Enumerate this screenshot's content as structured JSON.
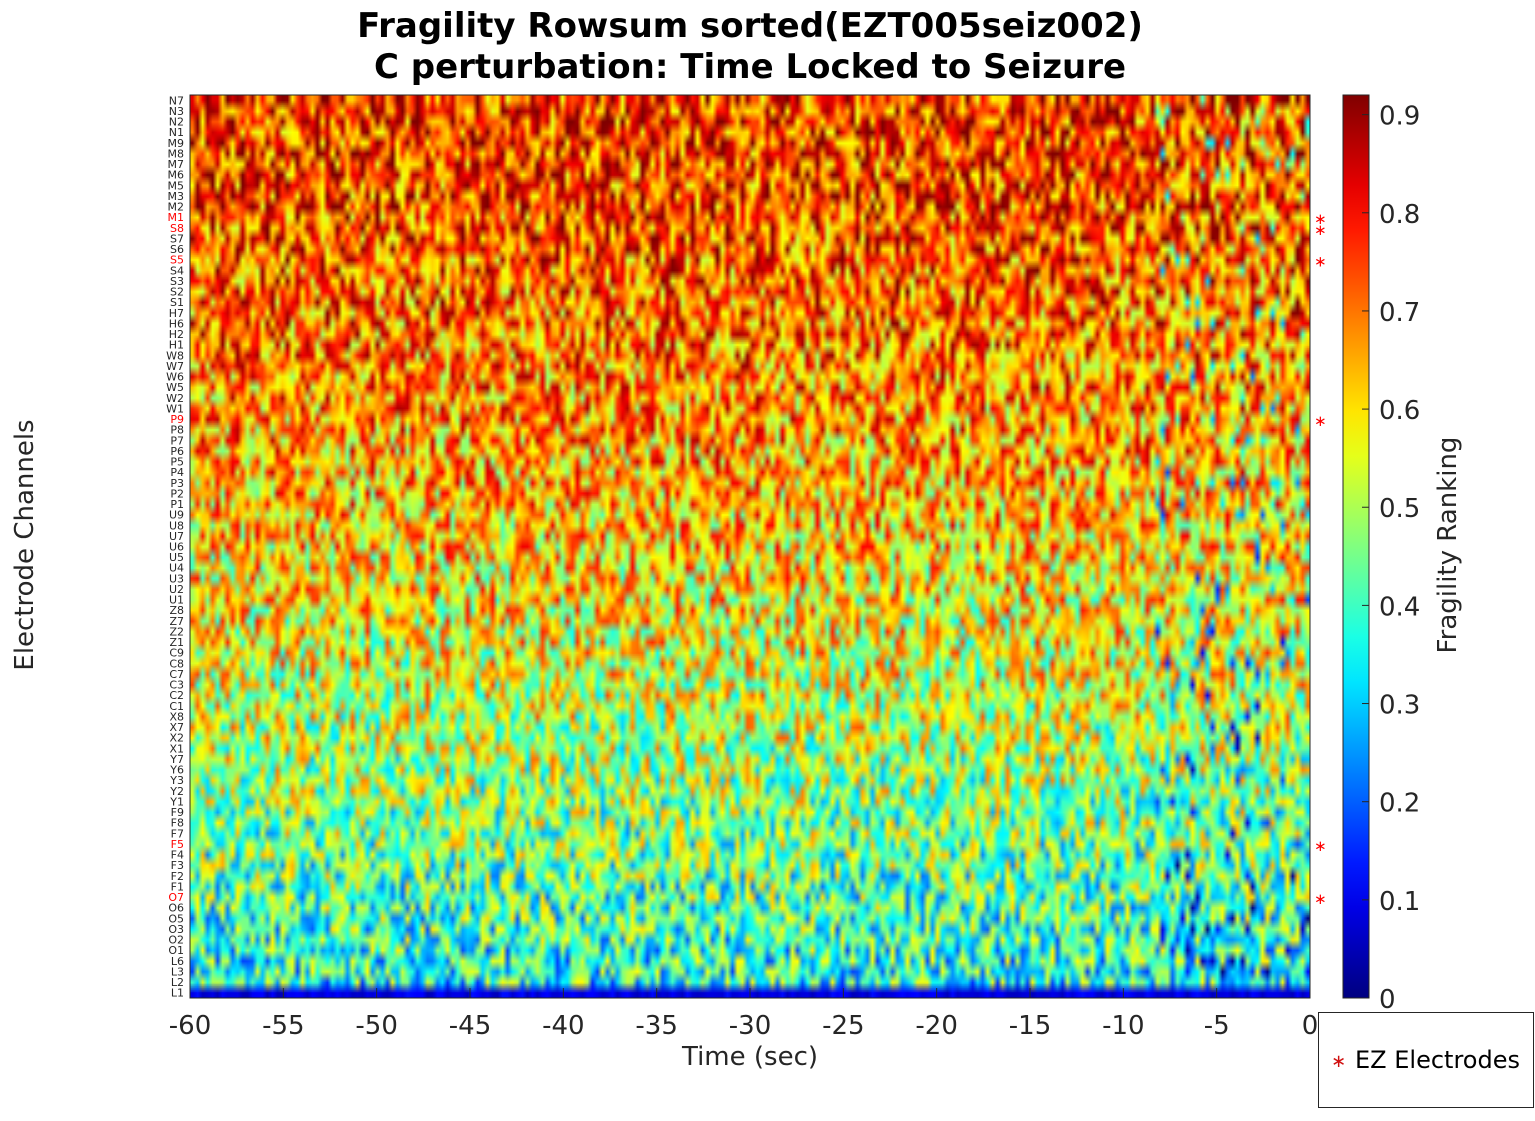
{
  "chart_data": {
    "type": "heatmap",
    "title": "Fragility Rowsum sorted(EZT005seiz002)",
    "subtitle": "C perturbation:  Time Locked to Seizure",
    "xlabel": "Time (sec)",
    "ylabel": "Electrode Channels",
    "colorbar_label": "Fragility Ranking",
    "colormap": "jet",
    "xlim": [
      -60,
      0
    ],
    "x_ticks": [
      -60,
      -55,
      -50,
      -45,
      -40,
      -35,
      -30,
      -25,
      -20,
      -15,
      -10,
      -5,
      0
    ],
    "x_tick_labels": [
      "-60",
      "-55",
      "-50",
      "-45",
      "-40",
      "-35",
      "-30",
      "-25",
      "-20",
      "-15",
      "-10",
      "-5",
      "0"
    ],
    "clim": [
      0,
      0.92
    ],
    "colorbar_ticks": [
      0,
      0.1,
      0.2,
      0.3,
      0.4,
      0.5,
      0.6,
      0.7,
      0.8,
      0.9
    ],
    "colorbar_tick_labels": [
      "0",
      "0.1",
      "0.2",
      "0.3",
      "0.4",
      "0.5",
      "0.6",
      "0.7",
      "0.8",
      "0.9"
    ],
    "channels": [
      "N7",
      "N3",
      "N2",
      "N1",
      "M9",
      "M8",
      "M7",
      "M6",
      "M5",
      "M3",
      "M2",
      "M1",
      "S8",
      "S7",
      "S6",
      "S5",
      "S4",
      "S3",
      "S2",
      "S1",
      "H7",
      "H6",
      "H2",
      "H1",
      "W8",
      "W7",
      "W6",
      "W5",
      "W2",
      "W1",
      "P9",
      "P8",
      "P7",
      "P6",
      "P5",
      "P4",
      "P3",
      "P2",
      "P1",
      "U9",
      "U8",
      "U7",
      "U6",
      "U5",
      "U4",
      "U3",
      "U2",
      "U1",
      "Z8",
      "Z7",
      "Z2",
      "Z1",
      "C9",
      "C8",
      "C7",
      "C3",
      "C2",
      "C1",
      "X8",
      "X7",
      "X2",
      "X1",
      "Y7",
      "Y6",
      "Y3",
      "Y2",
      "Y1",
      "F9",
      "F8",
      "F7",
      "F5",
      "F4",
      "F3",
      "F2",
      "F1",
      "O7",
      "O6",
      "O5",
      "O3",
      "O2",
      "O1",
      "L6",
      "L3",
      "L2",
      "L1"
    ],
    "ez_electrodes": [
      "M1",
      "S8",
      "S5",
      "P9",
      "F5",
      "O7"
    ],
    "ez_color": "#ff0000",
    "row_mean_fragility_top_to_bottom": [
      0.76,
      0.05
    ],
    "legend": {
      "label": "EZ Electrodes",
      "marker": "*",
      "placement": "bottom-right outside"
    }
  }
}
